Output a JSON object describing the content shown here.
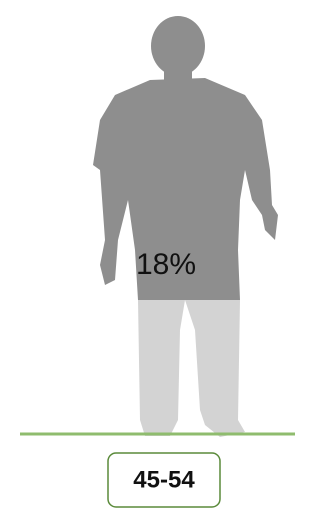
{
  "figure": {
    "percent_label": "18%",
    "age_group": "45-54"
  }
}
